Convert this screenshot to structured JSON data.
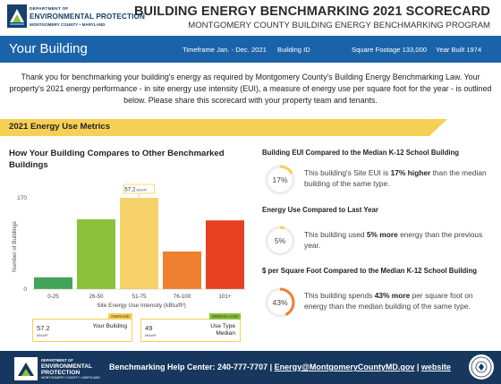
{
  "header": {
    "logo": {
      "dept": "DEPARTMENT OF",
      "name": "ENVIRONMENTAL PROTECTION",
      "county": "MONTGOMERY COUNTY • MARYLAND"
    },
    "title": "BUILDING ENERGY BENCHMARKING 2021 SCORECARD",
    "subtitle": "MONTGOMERY COUNTY BUILDING ENERGY BENCHMARKING PROGRAM"
  },
  "building_bar": {
    "name": "Your Building",
    "timeframe": "Timeframe Jan. - Dec. 2021",
    "building_id": "Building ID",
    "square_footage": "Square Footage 133,000",
    "year_built": "Year Built 1974",
    "color": "#1b63a8"
  },
  "intro": "Thank you for benchmarking your building's energy as required by Montgomery County's Building Energy Benchmarking Law. Your property's 2021 energy performance - in site energy use intensity (EUI), a measure of energy use per square foot for the year - is outlined below. Please share this scorecard with your property team and tenants.",
  "section": {
    "title": "2021 Energy Use Metrics",
    "color": "#f6cf55"
  },
  "chart_title": "How Your Building Compares to Other Benchmarked Buildings",
  "chart_data": {
    "type": "bar",
    "categories": [
      "0-25",
      "26-50",
      "51-75",
      "76-100",
      "101+"
    ],
    "values": [
      22,
      130,
      170,
      70,
      128
    ],
    "colors": [
      "#43a35a",
      "#8cc23b",
      "#f7d26a",
      "#ef7f31",
      "#e64122"
    ],
    "highlight_index": 2,
    "highlight_label": "57.2",
    "highlight_unit": "kBtu/ft²",
    "xlabel": "Site Energy Use Intensity (kBtu/ft²)",
    "ylabel": "Number of Buildings",
    "yticks": [
      "170",
      "0"
    ],
    "ylim": [
      0,
      175
    ]
  },
  "your_box": {
    "value": "57.2",
    "unit": "kBtu/ft²",
    "label": "Your Building",
    "tag": "AVERAGE",
    "tag_color": "#f6cf55"
  },
  "median_box": {
    "value": "49",
    "unit": "kBtu/ft²",
    "label": "Use Type Median",
    "tag": "MEDIAN LOW",
    "tag_color": "#8cc23b"
  },
  "metrics": [
    {
      "title": "Building EUI Compared to the Median K-12 School Building",
      "percent": "17%",
      "fraction": 0.17,
      "text_before": "This building's Site EUI is ",
      "text_bold": "17% higher",
      "text_after": " than the median building of the same type.",
      "color": "#f6cf55"
    },
    {
      "title": "Energy Use Compared to Last Year",
      "percent": "5%",
      "fraction": 0.05,
      "text_before": "This building used ",
      "text_bold": "5% more",
      "text_after": " energy than the previous year.",
      "color": "#f6cf55"
    },
    {
      "title": "$ per Square Foot Compared to the Median K-12 School Building",
      "percent": "43%",
      "fraction": 0.43,
      "text_before": "This building spends ",
      "text_bold": "43% more",
      "text_after": " per square foot on energy than the median building of the same type.",
      "color": "#ef7f31"
    }
  ],
  "footer": {
    "logo": {
      "dept": "DEPARTMENT OF",
      "name_1": "ENVIRONMENTAL",
      "name_2": "PROTECTION",
      "county": "MONTGOMERY COUNTY • MARYLAND"
    },
    "help_label": "Benchmarking Help Center: 240-777-7707 | ",
    "email": "Energy@MontgomeryCountyMD.gov",
    "separator": " | ",
    "website": "website",
    "color": "#17375e"
  }
}
